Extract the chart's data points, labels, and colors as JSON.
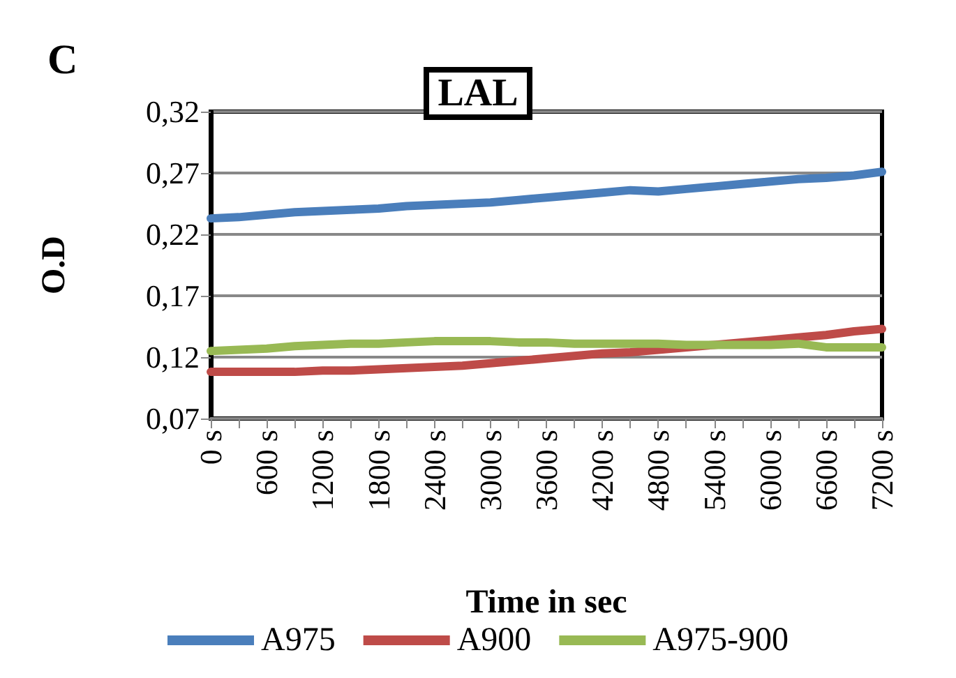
{
  "chart_data": {
    "type": "line",
    "title": "LAL",
    "xlabel": "Time in sec",
    "ylabel": "O.D",
    "annotations": [
      "C"
    ],
    "categories": [
      "0 s",
      null,
      "600 s",
      null,
      "1200 s",
      null,
      "1800 s",
      null,
      "2400 s",
      null,
      "3000 s",
      null,
      "3600 s",
      null,
      "4200 s",
      null,
      "4800 s",
      null,
      "5400 s",
      null,
      "6000 s",
      null,
      "6600 s",
      null,
      "7200 s"
    ],
    "series": [
      {
        "name": "A975",
        "color": "#4a7ebb",
        "values": [
          0.233,
          0.234,
          0.236,
          0.238,
          0.239,
          0.24,
          0.241,
          0.243,
          0.244,
          0.245,
          0.246,
          0.248,
          0.25,
          0.252,
          0.254,
          0.256,
          0.255,
          0.257,
          0.259,
          0.261,
          0.263,
          0.265,
          0.266,
          0.268,
          0.271
        ]
      },
      {
        "name": "A900",
        "color": "#be4b48",
        "values": [
          0.108,
          0.108,
          0.108,
          0.108,
          0.109,
          0.109,
          0.11,
          0.111,
          0.112,
          0.113,
          0.115,
          0.117,
          0.119,
          0.121,
          0.123,
          0.124,
          0.126,
          0.128,
          0.13,
          0.132,
          0.134,
          0.136,
          0.138,
          0.141,
          0.143
        ]
      },
      {
        "name": "A975-900",
        "color": "#98b954",
        "values": [
          0.125,
          0.126,
          0.127,
          0.129,
          0.13,
          0.131,
          0.131,
          0.132,
          0.133,
          0.133,
          0.133,
          0.132,
          0.132,
          0.131,
          0.131,
          0.131,
          0.131,
          0.13,
          0.13,
          0.13,
          0.13,
          0.131,
          0.128,
          0.128,
          0.128
        ]
      }
    ],
    "ylim": [
      0.07,
      0.32
    ],
    "yticks": [
      {
        "value": 0.07,
        "label": "0,07"
      },
      {
        "value": 0.12,
        "label": "0,12"
      },
      {
        "value": 0.17,
        "label": "0,17"
      },
      {
        "value": 0.22,
        "label": "0,22"
      },
      {
        "value": 0.27,
        "label": "0,27"
      },
      {
        "value": 0.32,
        "label": "0,32"
      }
    ],
    "grid": "y",
    "legend": "bottom",
    "marker": "none",
    "line_style": "solid"
  }
}
